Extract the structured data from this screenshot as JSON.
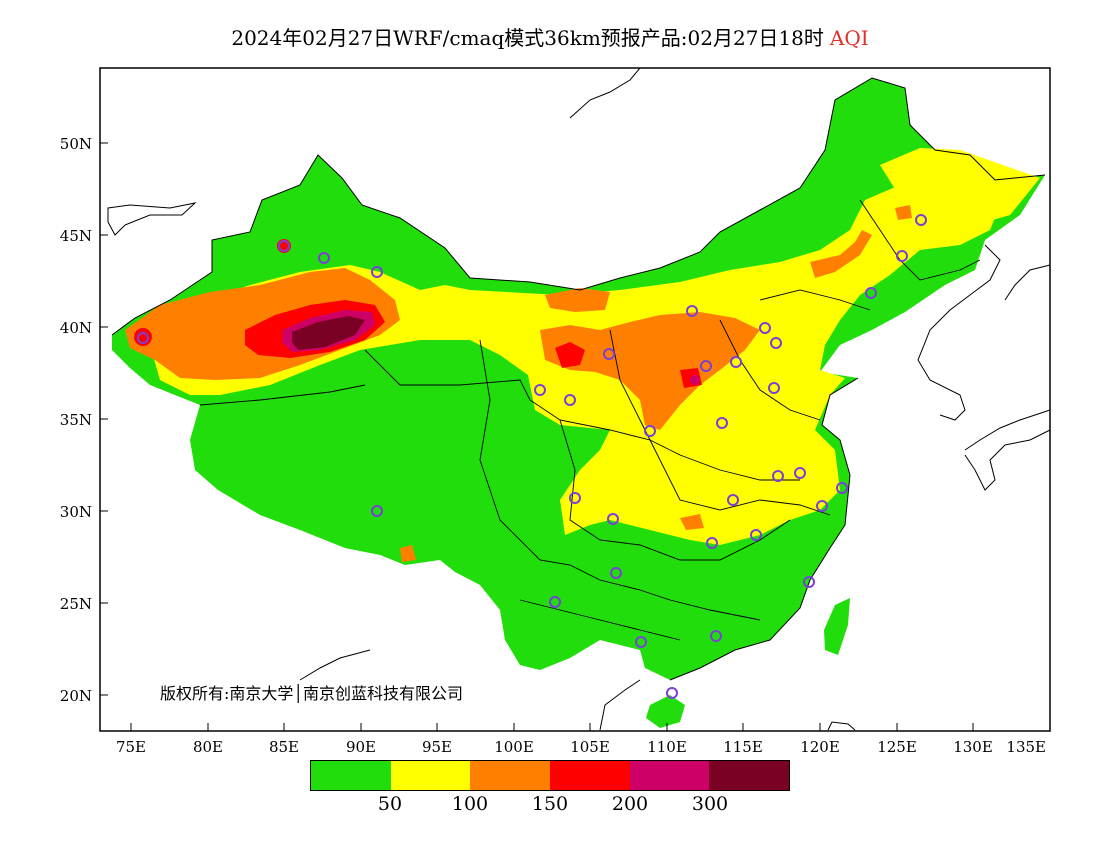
{
  "title": "2024年02月27日WRF/cmaq模式36km预报产品:02月27日18时",
  "title_tag": "AQI",
  "copyright": "版权所有:南京大学│南京创蓝科技有限公司",
  "lat_labels": [
    "50N",
    "45N",
    "40N",
    "35N",
    "30N",
    "25N",
    "20N"
  ],
  "lon_labels": [
    "75E",
    "80E",
    "85E",
    "90E",
    "95E",
    "100E",
    "105E",
    "110E",
    "115E",
    "120E",
    "125E",
    "130E",
    "135E"
  ],
  "legend": {
    "colors": [
      "#22dd0c",
      "#ffff00",
      "#ff8000",
      "#ff0000",
      "#cc0066",
      "#7a0024"
    ],
    "ticks": [
      "50",
      "100",
      "150",
      "200",
      "300"
    ]
  },
  "colors": {
    "good": "#22dd0c",
    "moderate": "#ffff00",
    "usg": "#ff8000",
    "unhealthy": "#ff0000",
    "very_unhealthy": "#cc0066",
    "hazardous": "#7a0024",
    "station": "#7b3fd9"
  }
}
